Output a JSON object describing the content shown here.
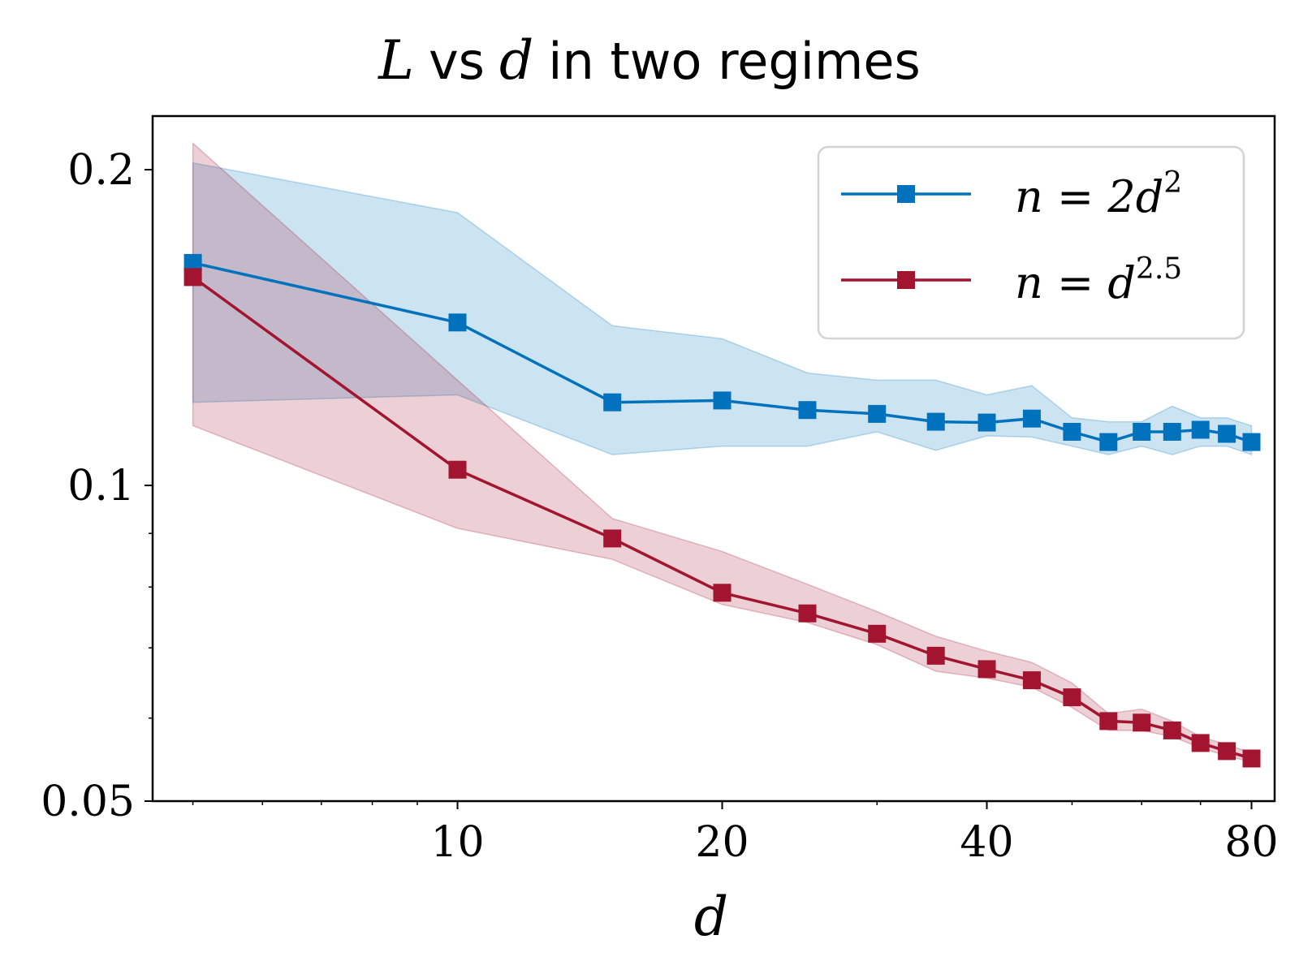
{
  "chart_data": {
    "type": "line",
    "title": {
      "var_l": "L",
      "vs": "vs",
      "var_d": "d",
      "rest": "in two regimes"
    },
    "xlabel": "d",
    "ylabel": "",
    "xscale": "log",
    "yscale": "log",
    "xlim": [
      4.5,
      85
    ],
    "ylim": [
      0.05,
      0.225
    ],
    "xticks": [
      10,
      20,
      40,
      80
    ],
    "xtick_labels": [
      "10",
      "20",
      "40",
      "80"
    ],
    "yticks": [
      0.05,
      0.1,
      0.2
    ],
    "ytick_labels": [
      "0.05",
      "0.1",
      "0.2"
    ],
    "grid": false,
    "legend_position": "top-right",
    "x": [
      5,
      10,
      15,
      20,
      25,
      30,
      35,
      40,
      45,
      50,
      55,
      60,
      65,
      70,
      75,
      80
    ],
    "series": [
      {
        "name": "n = 2d^2",
        "legend": {
          "lhs": "n = 2d",
          "sup": "2"
        },
        "color": "#0072bd",
        "marker": "square",
        "values": [
          0.163,
          0.143,
          0.12,
          0.1205,
          0.118,
          0.117,
          0.115,
          0.1148,
          0.1158,
          0.1125,
          0.11,
          0.1125,
          0.1125,
          0.113,
          0.112,
          0.11
        ],
        "lower": [
          0.12,
          0.122,
          0.107,
          0.109,
          0.109,
          0.1125,
          0.108,
          0.1115,
          0.1112,
          0.109,
          0.107,
          0.109,
          0.107,
          0.109,
          0.109,
          0.107
        ],
        "upper": [
          0.203,
          0.182,
          0.142,
          0.138,
          0.128,
          0.126,
          0.126,
          0.122,
          0.1245,
          0.116,
          0.115,
          0.115,
          0.119,
          0.116,
          0.116,
          0.114
        ]
      },
      {
        "name": "n = d^2.5",
        "legend": {
          "lhs": "n = d",
          "sup": "2.5"
        },
        "color": "#a2142f",
        "marker": "square",
        "values": [
          0.158,
          0.1035,
          0.089,
          0.079,
          0.0755,
          0.0722,
          0.0688,
          0.0668,
          0.0652,
          0.0628,
          0.0596,
          0.0594,
          0.0584,
          0.0568,
          0.0558,
          0.0549
        ],
        "lower": [
          0.114,
          0.091,
          0.085,
          0.077,
          0.074,
          0.0705,
          0.0665,
          0.0655,
          0.0642,
          0.0614,
          0.0584,
          0.0584,
          0.0576,
          0.0562,
          0.0552,
          0.0545
        ],
        "upper": [
          0.212,
          0.126,
          0.093,
          0.0865,
          0.0805,
          0.0758,
          0.0718,
          0.0695,
          0.0678,
          0.0648,
          0.0606,
          0.0612,
          0.0596,
          0.0576,
          0.0566,
          0.0556
        ]
      }
    ]
  }
}
